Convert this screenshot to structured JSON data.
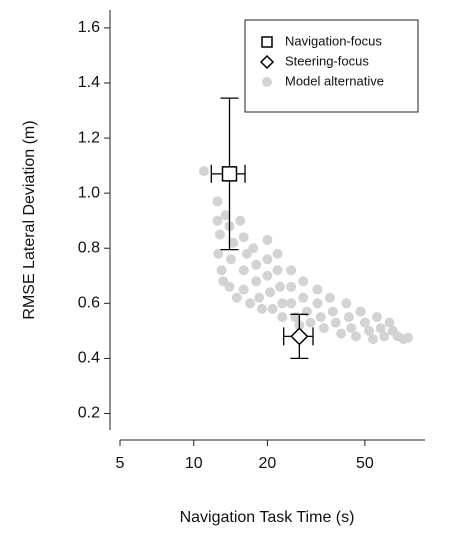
{
  "chart_data": {
    "type": "scatter",
    "xlabel": "Navigation Task Time (s)",
    "ylabel": "RMSE Lateral Deviation (m)",
    "xscale": "log",
    "xlim": [
      5,
      88
    ],
    "ylim": [
      0.14,
      1.665
    ],
    "xticks": [
      5,
      10,
      20,
      50
    ],
    "yticks": [
      0.2,
      0.4,
      0.6,
      0.8,
      {
        "value": 1,
        "label": "1.0"
      },
      1.2,
      1.4,
      1.6
    ],
    "grid": false,
    "legend": "topright",
    "series": [
      {
        "name": "Model alternative",
        "color": "#d3d3d3",
        "marker": "dot",
        "x": [
          11,
          12.5,
          12.5,
          12.8,
          12.6,
          13,
          13.2,
          13.5,
          14,
          14.5,
          14.2,
          14,
          15,
          15.5,
          16,
          16.5,
          16,
          16,
          17,
          17.5,
          18,
          18,
          18.5,
          19,
          20,
          20,
          20,
          20.5,
          21,
          22,
          22,
          22.5,
          23,
          23,
          25,
          25,
          25,
          26,
          27,
          28,
          28,
          29,
          30,
          32,
          32,
          33,
          34,
          36,
          37,
          38,
          40,
          42,
          43,
          44,
          46,
          48,
          50,
          52,
          54,
          56,
          58,
          60,
          63,
          65,
          68,
          72,
          75
        ],
        "values": [
          1.08,
          0.97,
          0.9,
          0.85,
          0.78,
          0.72,
          0.68,
          0.92,
          0.88,
          0.82,
          0.76,
          0.66,
          0.62,
          0.9,
          0.84,
          0.78,
          0.72,
          0.65,
          0.6,
          0.8,
          0.74,
          0.68,
          0.62,
          0.58,
          0.83,
          0.76,
          0.7,
          0.64,
          0.58,
          0.78,
          0.72,
          0.66,
          0.6,
          0.55,
          0.72,
          0.66,
          0.6,
          0.55,
          0.52,
          0.68,
          0.62,
          0.57,
          0.53,
          0.65,
          0.6,
          0.55,
          0.51,
          0.62,
          0.57,
          0.53,
          0.49,
          0.6,
          0.55,
          0.51,
          0.48,
          0.57,
          0.53,
          0.5,
          0.47,
          0.55,
          0.51,
          0.48,
          0.53,
          0.5,
          0.48,
          0.47,
          0.475
        ]
      },
      {
        "name": "Navigation-focus",
        "color": "#000000",
        "marker": "square",
        "x": [
          14
        ],
        "values": [
          1.07
        ],
        "x_err": [
          2.2
        ],
        "y_err": [
          0.275
        ]
      },
      {
        "name": "Steering-focus",
        "color": "#000000",
        "marker": "diamond",
        "x": [
          27
        ],
        "values": [
          0.48
        ],
        "x_err": [
          3.7
        ],
        "y_err": [
          0.08
        ]
      }
    ]
  }
}
